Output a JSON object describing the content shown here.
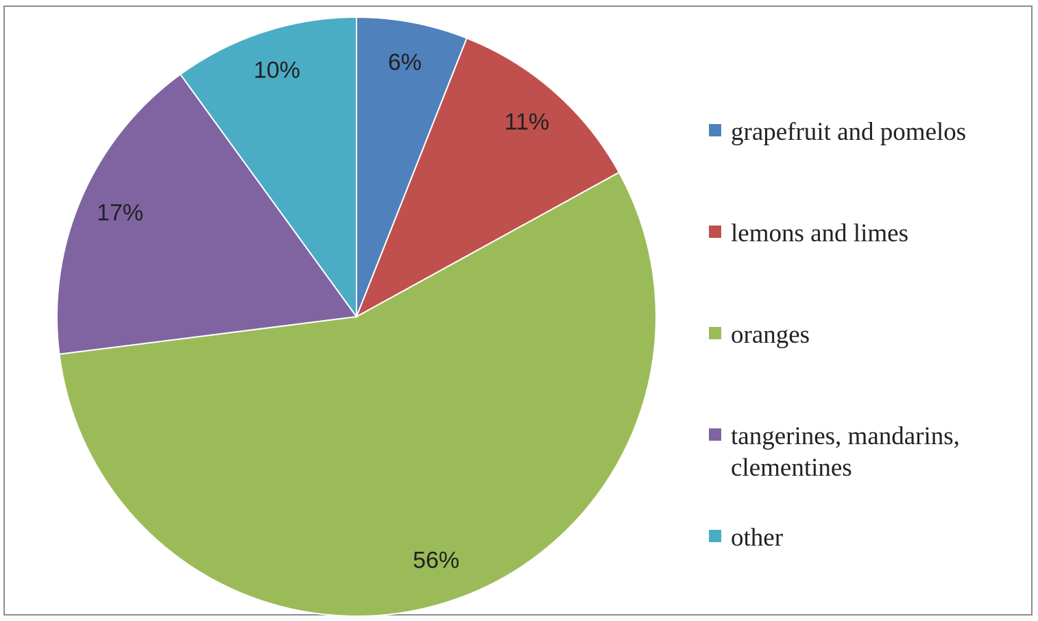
{
  "chart_data": {
    "type": "pie",
    "series": [
      {
        "name": "grapefruit and pomelos",
        "color": "#4f81bd",
        "values": [
          6
        ],
        "value_labels": [
          "6%"
        ]
      },
      {
        "name": "lemons and limes",
        "color": "#c0504d",
        "values": [
          11
        ],
        "value_labels": [
          "11%"
        ]
      },
      {
        "name": "oranges",
        "color": "#9bbb59",
        "values": [
          56
        ],
        "value_labels": [
          "56%"
        ]
      },
      {
        "name": "tangerines, mandarins, clementines",
        "color": "#8064a2",
        "values": [
          17
        ],
        "value_labels": [
          "17%"
        ]
      },
      {
        "name": "other",
        "color": "#4bacc6",
        "values": [
          10
        ],
        "value_labels": [
          "10%"
        ]
      }
    ],
    "legend": "right"
  }
}
